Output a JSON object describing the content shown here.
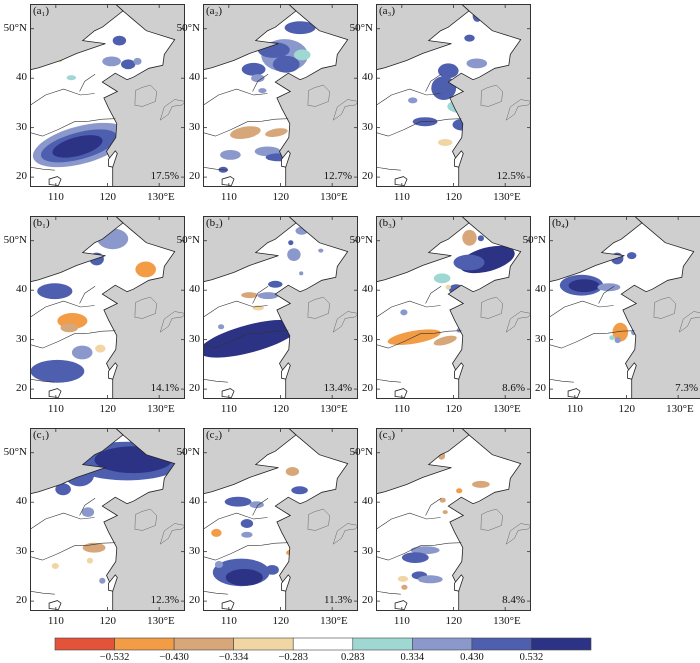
{
  "figure": {
    "colors": {
      "land": "#ffffff",
      "sea": "#cfcfcf",
      "coast": "#222222",
      "levels": [
        "#e3533a",
        "#f39c46",
        "#d7a679",
        "#f1d6a4",
        "#ffffff",
        "#9fd8d2",
        "#8b98cc",
        "#4f5fb0",
        "#2c3385"
      ]
    },
    "axis_labels": {
      "lat": [
        "50°N",
        "40",
        "30",
        "20"
      ],
      "lon": [
        "110",
        "120",
        "130°E"
      ]
    },
    "panels": [
      {
        "id": "a1",
        "label": "(a₁)",
        "percent": "17.5%"
      },
      {
        "id": "a2",
        "label": "(a₂)",
        "percent": "12.7%"
      },
      {
        "id": "a3",
        "label": "(a₃)",
        "percent": "12.5%"
      },
      {
        "id": "b1",
        "label": "(b₁)",
        "percent": "14.1%"
      },
      {
        "id": "b2",
        "label": "(b₂)",
        "percent": "13.4%"
      },
      {
        "id": "b3",
        "label": "(b₃)",
        "percent": "8.6%"
      },
      {
        "id": "b4",
        "label": "(b₄)",
        "percent": "7.3%"
      },
      {
        "id": "c1",
        "label": "(c₁)",
        "percent": "12.3%"
      },
      {
        "id": "c2",
        "label": "(c₂)",
        "percent": "11.3%"
      },
      {
        "id": "c3",
        "label": "(c₃)",
        "percent": "8.4%"
      }
    ],
    "colorbar": {
      "ticks": [
        "−0.532",
        "−0.430",
        "−0.334",
        "−0.283",
        "0.283",
        "0.334",
        "0.430",
        "0.532"
      ]
    }
  }
}
